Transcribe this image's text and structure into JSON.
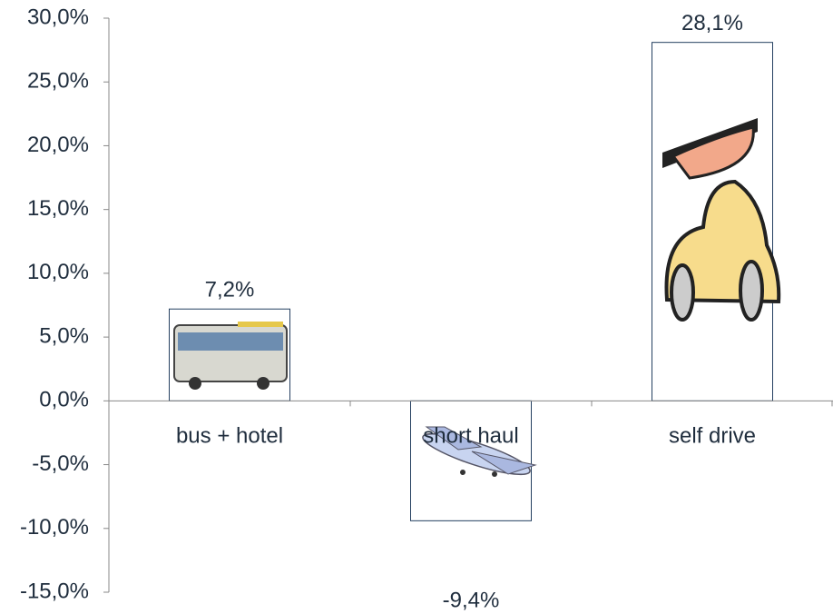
{
  "chart_data": {
    "type": "bar",
    "categories": [
      "bus + hotel",
      "short haul",
      "self drive"
    ],
    "values": [
      7.2,
      -9.4,
      28.1
    ],
    "value_labels": [
      "7,2%",
      "-9,4%",
      "28,1%"
    ],
    "color": "#ffffff",
    "ylim": [
      -15,
      30
    ],
    "yticks": [
      {
        "value": -15,
        "label": "-15,0%"
      },
      {
        "value": -10,
        "label": "-10,0%"
      },
      {
        "value": -5,
        "label": "-5,0%"
      },
      {
        "value": 0,
        "label": "0,0%"
      },
      {
        "value": 5,
        "label": "5,0%"
      },
      {
        "value": 10,
        "label": "10,0%"
      },
      {
        "value": 15,
        "label": "15,0%"
      },
      {
        "value": 20,
        "label": "20,0%"
      },
      {
        "value": 25,
        "label": "25,0%"
      },
      {
        "value": 30,
        "label": "30,0%"
      }
    ],
    "grid": false
  }
}
